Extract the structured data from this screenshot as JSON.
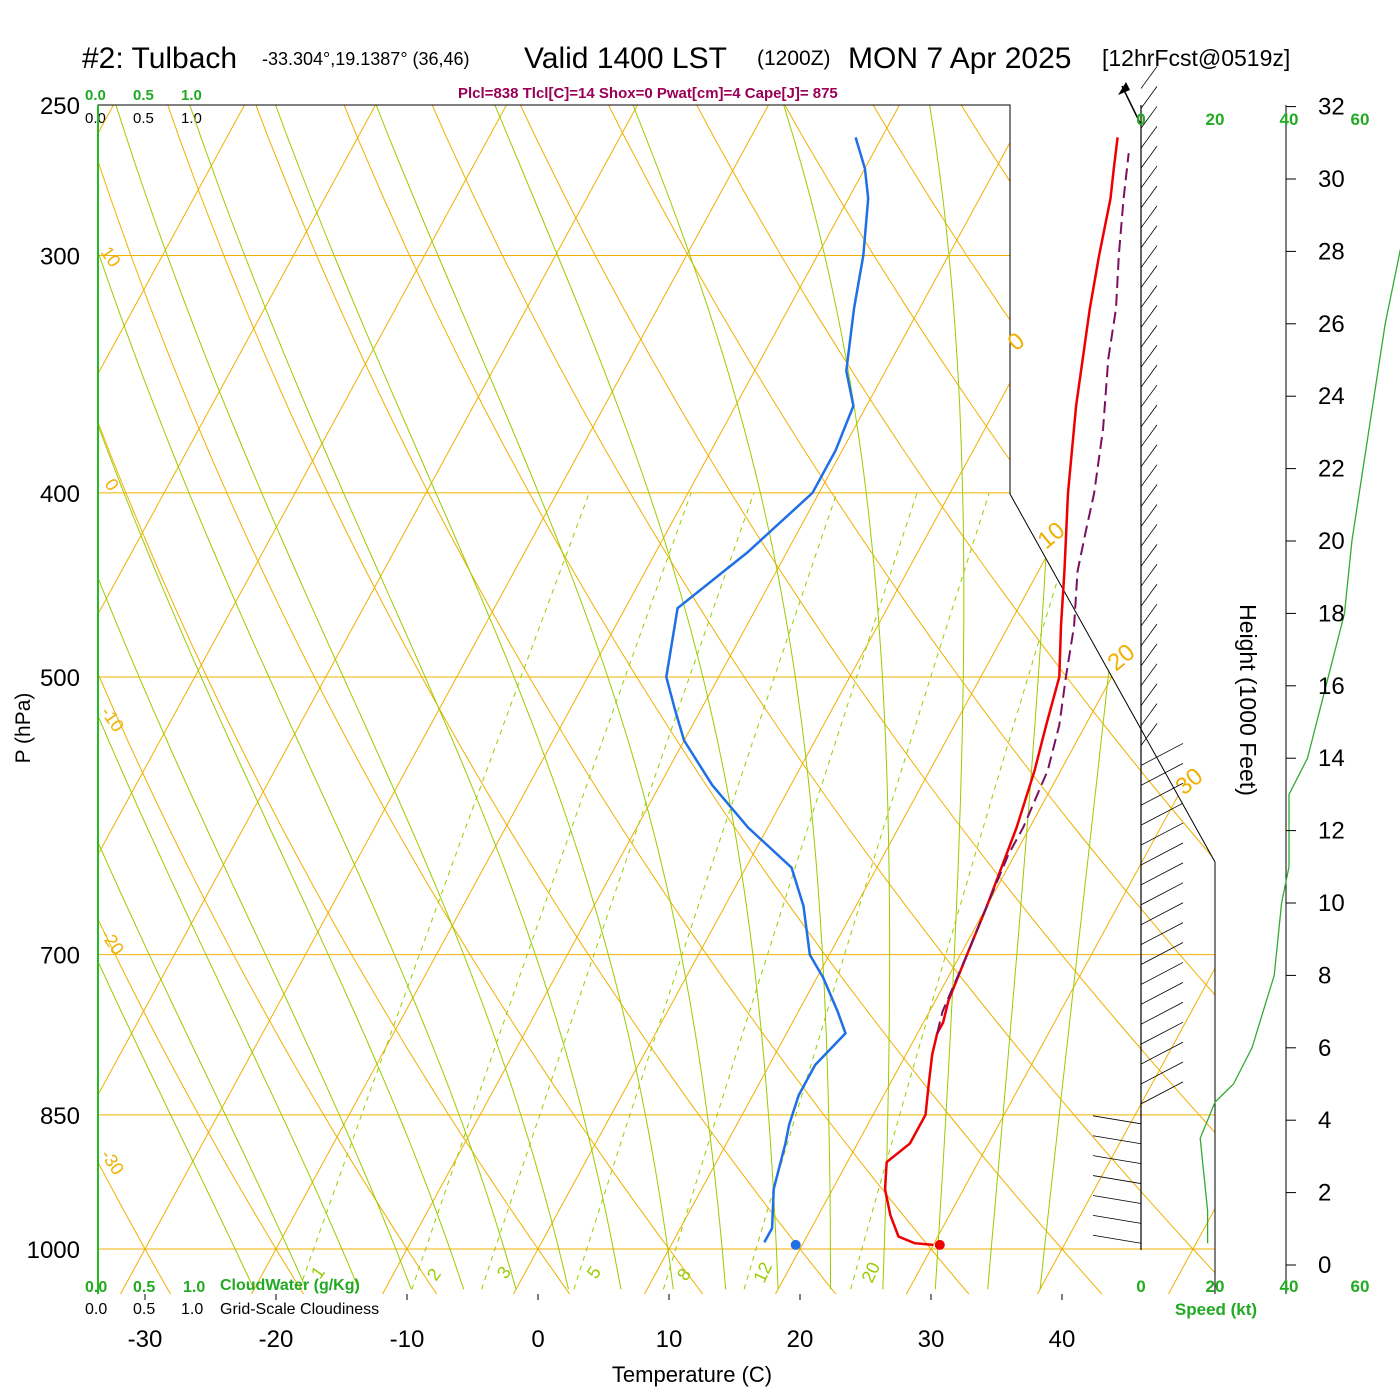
{
  "header": {
    "station": "#2: Tulbach",
    "coords": "-33.304°,19.1387° (36,46)",
    "valid_label": "Valid 1400 LST",
    "valid_z": "(1200Z)",
    "valid_date": "MON 7 Apr 2025",
    "forecast": "[12hrFcst@0519z]",
    "params": "Plcl=838 Tlcl[C]=14 Shox=0 Pwat[cm]=4 Cape[J]= 875"
  },
  "cloud_scale": {
    "ticks": [
      "0.0",
      "0.5",
      "1.0"
    ],
    "cloudwater_label": "CloudWater (g/Kg)",
    "cloudiness_label": "Grid-Scale Cloudiness"
  },
  "speed_axis": {
    "ticks": [
      "0",
      "20",
      "40",
      "60"
    ],
    "label": "Speed (kt)"
  },
  "height_axis": {
    "label": "Height (1000 Feet)",
    "ticks": [
      "0",
      "2",
      "4",
      "6",
      "8",
      "10",
      "12",
      "14",
      "16",
      "18",
      "20",
      "22",
      "24",
      "26",
      "28",
      "30",
      "32"
    ]
  },
  "isotherm_labels": [
    "10",
    "0",
    "-10",
    "-20",
    "-30",
    "0",
    "10",
    "20",
    "30"
  ],
  "mixing_ratio_labels": [
    "1",
    "2",
    "3",
    "5",
    "8",
    "12",
    "20"
  ],
  "colors": {
    "temperature": "#ee0000",
    "dewpoint": "#1f6fe6",
    "parcel": "#7a1060",
    "isobar_isotherm": "#f0b000",
    "dry_adiabat": "#f0b000",
    "moist_adiabat": "#99cc00",
    "mixing_ratio": "#99cc00",
    "wind_speed": "#33aa33",
    "green_text": "#22aa22",
    "params_text": "#990055"
  },
  "chart_data": {
    "type": "line",
    "title": "#2: Tulbach",
    "xlabel": "Temperature (C)",
    "ylabel": "P (hPa)",
    "x_ticks": [
      -30,
      -20,
      -10,
      0,
      10,
      20,
      30,
      40
    ],
    "y_ticks": [
      250,
      300,
      400,
      500,
      700,
      850,
      1000
    ],
    "xlim": [
      -34,
      36
    ],
    "ylim": [
      1050,
      250
    ],
    "y_scale": "log",
    "skew": "skew-T",
    "series": [
      {
        "kind": "temperature",
        "points": [
          [
            30.0,
            995
          ],
          [
            28.5,
            993
          ],
          [
            27.0,
            985
          ],
          [
            25.5,
            960
          ],
          [
            24.0,
            930
          ],
          [
            23.0,
            900
          ],
          [
            23.5,
            890
          ],
          [
            24.0,
            880
          ],
          [
            24.0,
            850
          ],
          [
            23.0,
            820
          ],
          [
            22.0,
            790
          ],
          [
            21.5,
            770
          ],
          [
            21.5,
            760
          ],
          [
            21.0,
            740
          ],
          [
            20.5,
            700
          ],
          [
            20.0,
            660
          ],
          [
            19.0,
            600
          ],
          [
            18.0,
            560
          ],
          [
            17.0,
            530
          ],
          [
            16.0,
            500
          ],
          [
            14.0,
            470
          ],
          [
            12.0,
            440
          ],
          [
            9.0,
            400
          ],
          [
            6.0,
            360
          ],
          [
            3.0,
            320
          ],
          [
            1.5,
            300
          ],
          [
            0.0,
            280
          ],
          [
            -1.0,
            270
          ],
          [
            -2.0,
            260
          ]
        ]
      },
      {
        "kind": "dewpoint",
        "points": [
          [
            17.0,
            992
          ],
          [
            17.0,
            975
          ],
          [
            15.5,
            930
          ],
          [
            14.5,
            880
          ],
          [
            14.0,
            860
          ],
          [
            13.5,
            830
          ],
          [
            13.5,
            800
          ],
          [
            14.5,
            770
          ],
          [
            13.0,
            750
          ],
          [
            10.5,
            720
          ],
          [
            8.5,
            700
          ],
          [
            6.0,
            660
          ],
          [
            3.5,
            630
          ],
          [
            -1.5,
            600
          ],
          [
            -6.0,
            570
          ],
          [
            -10.0,
            540
          ],
          [
            -12.0,
            520
          ],
          [
            -14.0,
            500
          ],
          [
            -16.0,
            460
          ],
          [
            -13.0,
            430
          ],
          [
            -10.5,
            400
          ],
          [
            -10.5,
            380
          ],
          [
            -11.0,
            360
          ],
          [
            -13.0,
            345
          ],
          [
            -15.0,
            320
          ],
          [
            -16.5,
            300
          ],
          [
            -18.5,
            280
          ],
          [
            -20.0,
            270
          ],
          [
            -22.0,
            260
          ]
        ]
      },
      {
        "kind": "parcel",
        "points": [
          [
            21.5,
            770
          ],
          [
            21.0,
            750
          ],
          [
            20.5,
            700
          ],
          [
            20.0,
            660
          ],
          [
            19.5,
            620
          ],
          [
            19.5,
            600
          ],
          [
            19.0,
            560
          ],
          [
            18.0,
            530
          ],
          [
            16.5,
            500
          ],
          [
            15.0,
            470
          ],
          [
            13.0,
            440
          ],
          [
            12.0,
            420
          ],
          [
            11.0,
            400
          ],
          [
            9.0,
            370
          ],
          [
            6.5,
            340
          ],
          [
            5.0,
            320
          ],
          [
            3.0,
            300
          ],
          [
            1.0,
            280
          ],
          [
            -0.5,
            265
          ]
        ]
      }
    ],
    "surface_points": [
      {
        "kind": "temperature",
        "t": 30.5,
        "p": 995
      },
      {
        "kind": "dewpoint",
        "t": 19.5,
        "p": 995
      }
    ],
    "wind_speed_profile_kt": [
      [
        0.6,
        18
      ],
      [
        1.5,
        18
      ],
      [
        2.5,
        17
      ],
      [
        3.5,
        16
      ],
      [
        4.5,
        20
      ],
      [
        5.0,
        25
      ],
      [
        6.0,
        30
      ],
      [
        7.0,
        33
      ],
      [
        8.0,
        36
      ],
      [
        9.0,
        37
      ],
      [
        10.0,
        38
      ],
      [
        11.0,
        40
      ],
      [
        12.0,
        40
      ],
      [
        13.0,
        40
      ],
      [
        14.0,
        45
      ],
      [
        16.0,
        50
      ],
      [
        18.0,
        55
      ],
      [
        20.0,
        57
      ],
      [
        22.0,
        60
      ],
      [
        24.0,
        63
      ],
      [
        26.0,
        66
      ],
      [
        28.0,
        70
      ],
      [
        30.0,
        75
      ],
      [
        31.0,
        80
      ],
      [
        32.5,
        90
      ]
    ]
  }
}
